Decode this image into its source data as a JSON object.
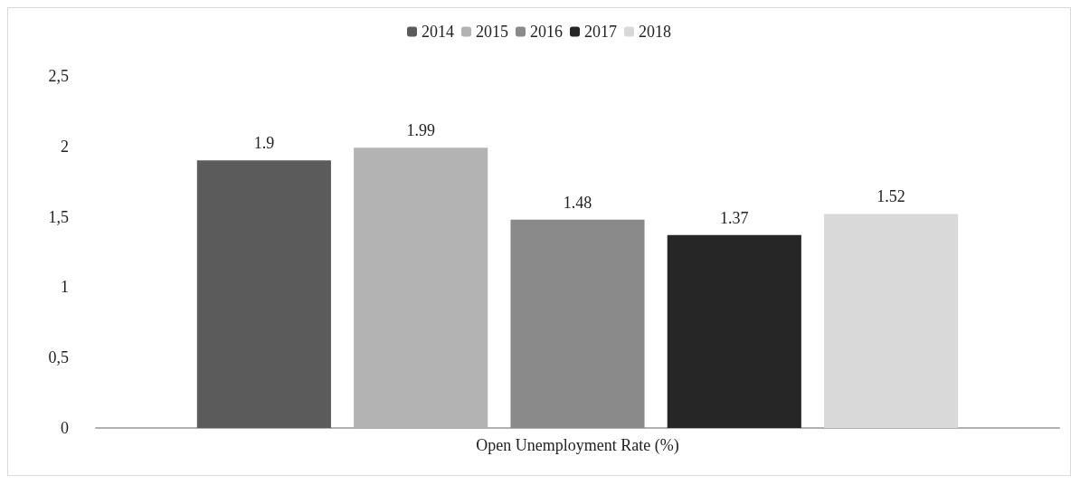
{
  "chart_data": {
    "type": "bar",
    "categories": [
      "Open Unemployment Rate (%)"
    ],
    "series": [
      {
        "name": "2014",
        "color": "#5b5b5b",
        "values": [
          1.9
        ]
      },
      {
        "name": "2015",
        "color": "#b3b3b3",
        "values": [
          1.99
        ]
      },
      {
        "name": "2016",
        "color": "#8a8a8a",
        "values": [
          1.48
        ]
      },
      {
        "name": "2017",
        "color": "#262626",
        "values": [
          1.37
        ]
      },
      {
        "name": "2018",
        "color": "#d9d9d9",
        "values": [
          1.52
        ]
      }
    ],
    "ylim": [
      0,
      2.5
    ],
    "yticks": [
      0,
      {
        "value": 0.5,
        "label": "0,5"
      },
      1,
      {
        "value": 1.5,
        "label": "1,5"
      },
      2,
      {
        "value": 2.5,
        "label": "2,5"
      }
    ],
    "data_labels": true,
    "grid": false,
    "legend": "top"
  }
}
